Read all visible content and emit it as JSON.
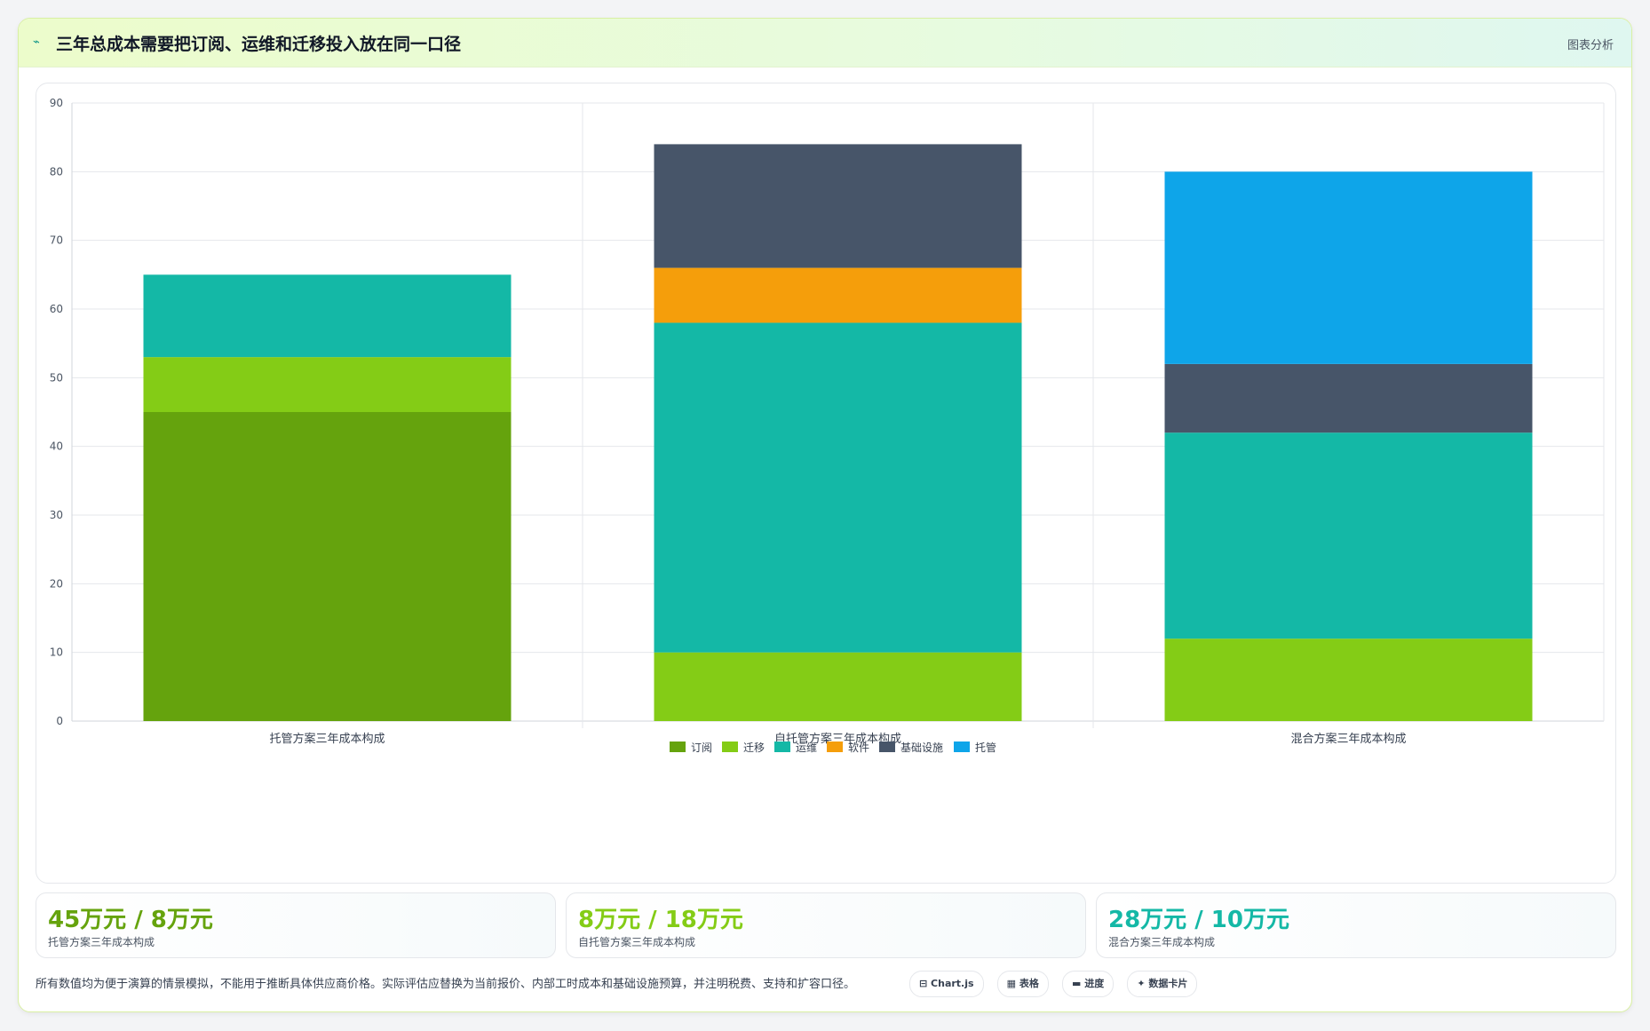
{
  "header": {
    "icon": "⌁",
    "title": "三年总成本需要把订阅、运维和迁移投入放在同一口径",
    "tag": "图表分析"
  },
  "chart_data": {
    "type": "bar",
    "stacked": true,
    "categories": [
      "托管方案三年成本构成",
      "自托管方案三年成本构成",
      "混合方案三年成本构成"
    ],
    "series": [
      {
        "name": "订阅",
        "color": "#65a30d",
        "values": [
          45,
          0,
          0
        ]
      },
      {
        "name": "迁移",
        "color": "#84cc16",
        "values": [
          8,
          10,
          12
        ]
      },
      {
        "name": "运维",
        "color": "#14b8a6",
        "values": [
          12,
          48,
          30
        ]
      },
      {
        "name": "软件",
        "color": "#f59e0b",
        "values": [
          0,
          8,
          0
        ]
      },
      {
        "name": "基础设施",
        "color": "#475569",
        "values": [
          0,
          18,
          10
        ]
      },
      {
        "name": "托管",
        "color": "#0ea5e9",
        "values": [
          0,
          0,
          28
        ]
      }
    ],
    "ylim": [
      0,
      90
    ],
    "yticks": [
      0,
      10,
      20,
      30,
      40,
      50,
      60,
      70,
      80,
      90
    ],
    "grid": true,
    "legend": "bottom",
    "title": "",
    "xlabel": "",
    "ylabel": ""
  },
  "stats": [
    {
      "value": "45万元 / 8万元",
      "label": "托管方案三年成本构成",
      "color": "#65a30d"
    },
    {
      "value": "8万元 / 18万元",
      "label": "自托管方案三年成本构成",
      "color": "#84cc16"
    },
    {
      "value": "28万元 / 10万元",
      "label": "混合方案三年成本构成",
      "color": "#14b8a6"
    }
  ],
  "footnote": "所有数值均为便于演算的情景模拟，不能用于推断具体供应商价格。实际评估应替换为当前报价、内部工时成本和基础设施预算，并注明税费、支持和扩容口径。",
  "pills": [
    {
      "label": "⊟ Chart.js"
    },
    {
      "label": "▦ 表格"
    },
    {
      "label": "▬ 进度"
    },
    {
      "label": "✦ 数据卡片"
    }
  ]
}
